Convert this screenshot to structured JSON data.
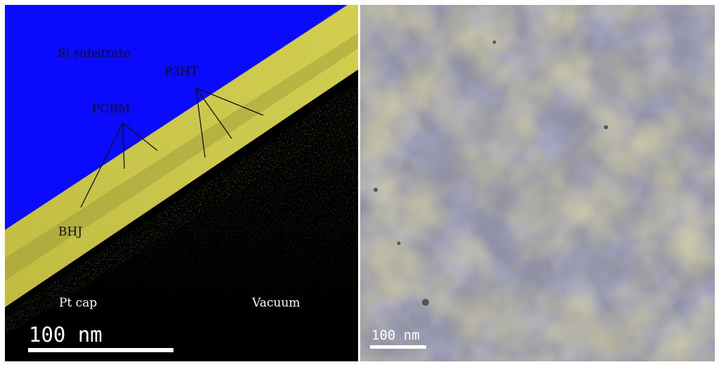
{
  "left_panel": {
    "labels": {
      "si_substrate": "Si substrate",
      "p3ht": "P3HT",
      "pcbm": "PCBM",
      "bhj": "BHJ",
      "pt_cap": "Pt cap",
      "vacuum": "Vacuum"
    },
    "scalebar": {
      "label": "100 nm"
    },
    "colors": {
      "substrate": "#0a0aff",
      "film": "#d6d24a",
      "background": "#000000"
    }
  },
  "right_panel": {
    "scalebar": {
      "label": "100 nm"
    },
    "colors": {
      "base": "#8c8c9e",
      "yellow": "#b8b25a",
      "blue": "#6e6eaa"
    }
  }
}
